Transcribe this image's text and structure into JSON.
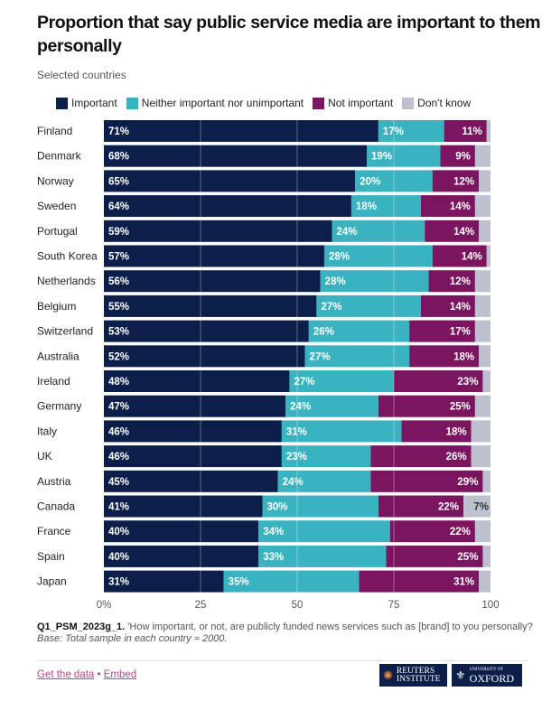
{
  "title": "Proportion that say public service media are important to them personally",
  "subtitle": "Selected countries",
  "chart_data": {
    "type": "bar",
    "orientation": "horizontal-stacked",
    "categories": [
      "Finland",
      "Denmark",
      "Norway",
      "Sweden",
      "Portugal",
      "South Korea",
      "Netherlands",
      "Belgium",
      "Switzerland",
      "Australia",
      "Ireland",
      "Germany",
      "Italy",
      "UK",
      "Austria",
      "Canada",
      "France",
      "Spain",
      "Japan"
    ],
    "series": [
      {
        "name": "Important",
        "color": "#0b1f4a",
        "values": [
          71,
          68,
          65,
          64,
          59,
          57,
          56,
          55,
          53,
          52,
          48,
          47,
          46,
          46,
          45,
          41,
          40,
          40,
          31
        ]
      },
      {
        "name": "Neither important nor unimportant",
        "color": "#3ab3c0",
        "values": [
          17,
          19,
          20,
          18,
          24,
          28,
          28,
          27,
          26,
          27,
          27,
          24,
          31,
          23,
          24,
          30,
          34,
          33,
          35
        ]
      },
      {
        "name": "Not important",
        "color": "#7b1560",
        "values": [
          11,
          9,
          12,
          14,
          14,
          14,
          12,
          14,
          17,
          18,
          23,
          25,
          18,
          26,
          29,
          22,
          22,
          25,
          31
        ]
      },
      {
        "name": "Don't know",
        "color": "#bcc0cf",
        "values": [
          1,
          4,
          3,
          4,
          3,
          1,
          4,
          4,
          4,
          3,
          2,
          4,
          5,
          5,
          2,
          7,
          4,
          2,
          3
        ]
      }
    ],
    "labeled_dont_know": [
      "Canada"
    ],
    "xlim": [
      0,
      100
    ],
    "xticks": [
      "0%",
      "25",
      "50",
      "75",
      "100"
    ],
    "grid": true,
    "legend": "top"
  },
  "footer": {
    "question_code": "Q1_PSM_2023g_1.",
    "question": "'How important, or not, are publicly funded news services such as [brand] to you personally?",
    "base": "Base: Total sample in each country ≈ 2000.",
    "get_data": "Get the data",
    "sep": "•",
    "embed": "Embed",
    "logo1": "REUTERS INSTITUTE",
    "logo2_small": "UNIVERSITY OF",
    "logo2": "OXFORD"
  }
}
